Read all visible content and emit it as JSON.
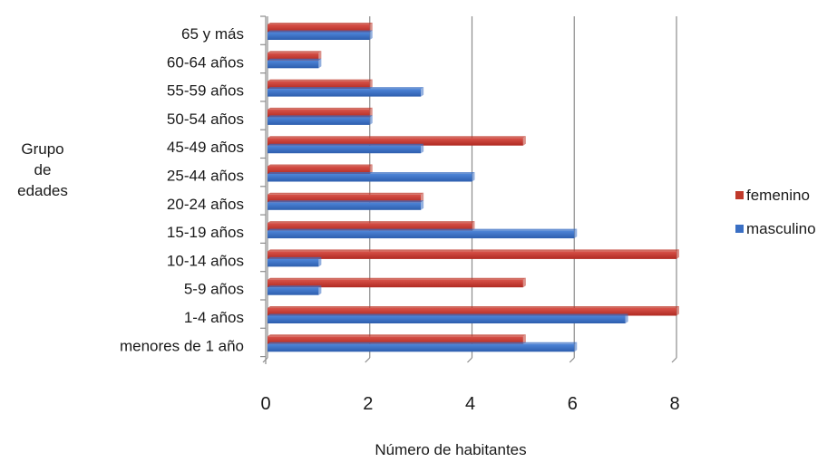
{
  "chart_data": {
    "type": "bar",
    "orientation": "horizontal",
    "style": "3d",
    "categories": [
      "65 y más",
      "60-64 años",
      "55-59 años",
      "50-54 años",
      "45-49 años",
      "25-44 años",
      "20-24 años",
      "15-19 años",
      "10-14 años",
      "5-9 años",
      "1-4 años",
      "menores de 1 año"
    ],
    "series": [
      {
        "name": "femenino",
        "color": "#c0392b",
        "values": [
          2,
          1,
          2,
          2,
          5,
          2,
          3,
          4,
          8,
          5,
          8,
          5
        ]
      },
      {
        "name": "masculino",
        "color": "#3a6fc4",
        "values": [
          2,
          1,
          3,
          2,
          3,
          4,
          3,
          6,
          1,
          1,
          7,
          6
        ]
      }
    ],
    "xlabel": "Número de habitantes",
    "ylabel_lines": [
      "Grupo",
      "de",
      "edades"
    ],
    "xlim": [
      0,
      8
    ],
    "xticks": [
      0,
      2,
      4,
      6,
      8
    ],
    "grid": "vertical",
    "legend_position": "right"
  }
}
